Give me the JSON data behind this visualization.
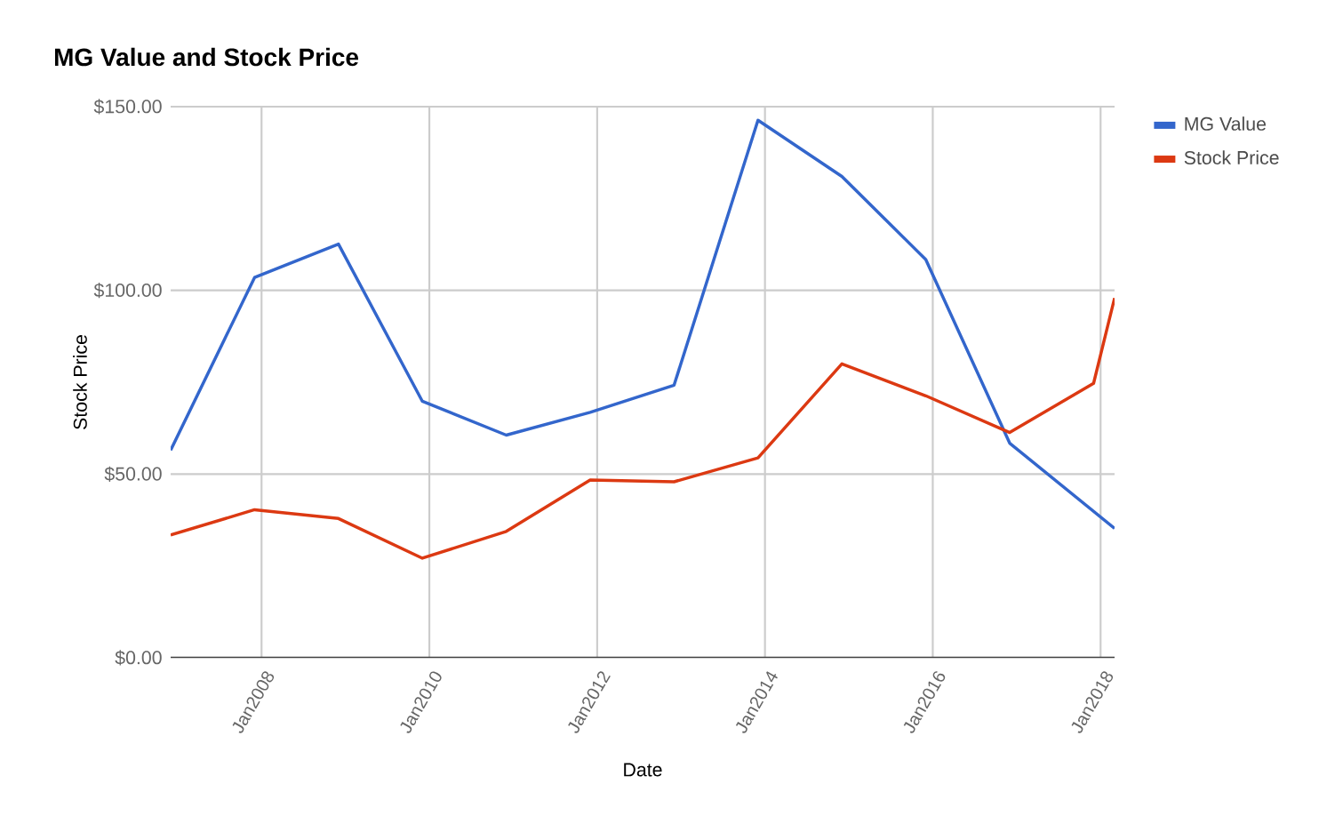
{
  "chart_data": {
    "type": "line",
    "title": "MG Value and Stock Price",
    "xlabel": "Date",
    "ylabel": "Stock Price",
    "x": [
      "2006-12",
      "2007-12",
      "2008-12",
      "2009-12",
      "2010-12",
      "2011-12",
      "2012-12",
      "2013-12",
      "2014-12",
      "2015-12",
      "2016-12",
      "2017-12",
      "2018-03"
    ],
    "series": [
      {
        "name": "MG Value",
        "color": "#3366cc",
        "x": [
          "2006-12",
          "2007-12",
          "2008-12",
          "2009-12",
          "2010-12",
          "2011-12",
          "2012-12",
          "2013-12",
          "2014-12",
          "2015-12",
          "2016-12",
          "2018-03"
        ],
        "values": [
          56.5,
          103.5,
          112.6,
          69.8,
          60.6,
          66.8,
          74.2,
          146.3,
          131,
          108.4,
          58.4,
          35.2
        ]
      },
      {
        "name": "Stock Price",
        "color": "#dc3912",
        "values": [
          33.4,
          40.3,
          37.9,
          27.1,
          34.4,
          48.4,
          47.9,
          54.4,
          80,
          71.3,
          61.3,
          74.7,
          97.9
        ]
      }
    ],
    "xlim": [
      "2006-12",
      "2018-03"
    ],
    "xticks": [
      {
        "value": "2008-01",
        "label": "Jan2008"
      },
      {
        "value": "2010-01",
        "label": "Jan2010"
      },
      {
        "value": "2012-01",
        "label": "Jan2012"
      },
      {
        "value": "2014-01",
        "label": "Jan2014"
      },
      {
        "value": "2016-01",
        "label": "Jan2016"
      },
      {
        "value": "2018-01",
        "label": "Jan2018"
      }
    ],
    "ylim": [
      0,
      150
    ],
    "yticks": [
      {
        "value": 0,
        "label": "$0.00"
      },
      {
        "value": 50,
        "label": "$50.00"
      },
      {
        "value": 100,
        "label": "$100.00"
      },
      {
        "value": 150,
        "label": "$150.00"
      }
    ],
    "grid": true,
    "legend": "top right",
    "marker": "none",
    "line_style": "solid"
  }
}
